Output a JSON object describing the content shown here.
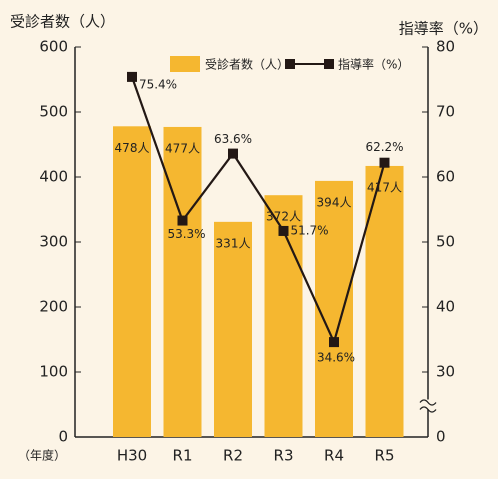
{
  "chart_data": {
    "type": "bar_line",
    "y_axis_title": "受診者数（人）",
    "y2_axis_title": "指導率（%）",
    "x_axis_title": "（年度）",
    "categories": [
      "H30",
      "R1",
      "R2",
      "R3",
      "R4",
      "R5"
    ],
    "series": [
      {
        "name": "受診者数（人）",
        "type": "bar",
        "color": "#f5b730",
        "axis": "y",
        "values": [
          478,
          477,
          331,
          372,
          394,
          417
        ],
        "value_labels": [
          "478人",
          "477人",
          "331人",
          "372人",
          "394人",
          "417人"
        ]
      },
      {
        "name": "指導率（%）",
        "type": "line",
        "color": "#231815",
        "axis": "y2",
        "values": [
          75.4,
          53.3,
          63.6,
          51.7,
          34.6,
          62.2
        ],
        "value_labels": [
          "75.4%",
          "53.3%",
          "63.6%",
          "51.7%",
          "34.6%",
          "62.2%"
        ]
      }
    ],
    "ylim": [
      0,
      600
    ],
    "yticks": [
      0,
      100,
      200,
      300,
      400,
      500,
      600
    ],
    "y2lim": [
      0,
      80
    ],
    "y2ticks": [
      0,
      30,
      40,
      50,
      60,
      70,
      80
    ],
    "y2_break": 30,
    "legend": "top"
  }
}
